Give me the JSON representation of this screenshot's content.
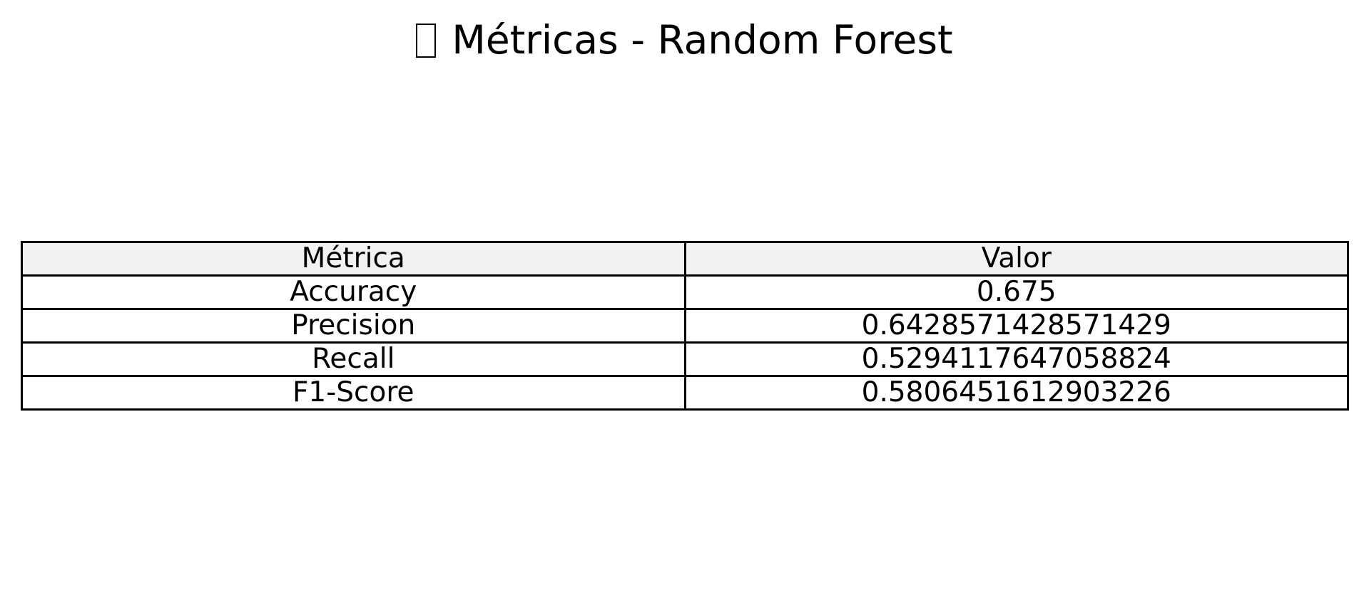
{
  "chart_data": {
    "type": "table",
    "title": "Métricas - Random Forest",
    "title_icon": "missing-glyph-box",
    "columns": [
      "Métrica",
      "Valor"
    ],
    "rows": [
      [
        "Accuracy",
        "0.675"
      ],
      [
        "Precision",
        "0.6428571428571429"
      ],
      [
        "Recall",
        "0.5294117647058824"
      ],
      [
        "F1-Score",
        "0.5806451612903226"
      ]
    ],
    "header_background": "#f2f2f2",
    "border_color": "#000000"
  }
}
